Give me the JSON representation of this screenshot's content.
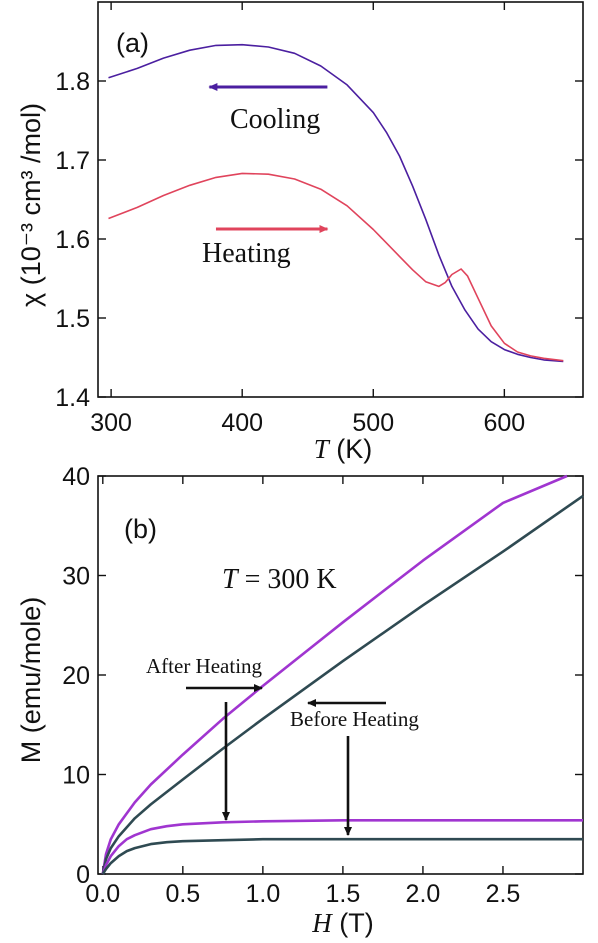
{
  "colors": {
    "cooling": "#4b1fa0",
    "heating": "#e0445c",
    "after_heating": "#a035d0",
    "before_heating": "#2f4a52",
    "axis": "#111111"
  },
  "chart_data": [
    {
      "type": "line",
      "panel_label": "(a)",
      "xlabel_italic": "T",
      "xlabel_rest": " (K)",
      "ylabel": "χ (10⁻³ cm³ /mol)",
      "xlim": [
        290,
        660
      ],
      "ylim": [
        1.4,
        1.9
      ],
      "xticks": [
        300,
        400,
        500,
        600
      ],
      "yticks": [
        1.4,
        1.5,
        1.6,
        1.7,
        1.8
      ],
      "ytick_labels": [
        "1.4",
        "1.5",
        "1.6",
        "1.7",
        "1.8"
      ],
      "annotations": {
        "cooling": "Cooling",
        "heating": "Heating"
      },
      "series": [
        {
          "name": "Cooling",
          "x": [
            298,
            320,
            340,
            360,
            380,
            400,
            420,
            440,
            460,
            480,
            500,
            510,
            520,
            530,
            540,
            550,
            560,
            570,
            580,
            590,
            600,
            610,
            620,
            630,
            645
          ],
          "y": [
            1.804,
            1.816,
            1.829,
            1.839,
            1.845,
            1.846,
            1.843,
            1.835,
            1.819,
            1.795,
            1.76,
            1.735,
            1.705,
            1.667,
            1.625,
            1.58,
            1.54,
            1.51,
            1.486,
            1.47,
            1.46,
            1.454,
            1.45,
            1.447,
            1.445
          ],
          "arrow_x": [
            465,
            375
          ]
        },
        {
          "name": "Heating",
          "x": [
            298,
            320,
            340,
            360,
            380,
            400,
            420,
            440,
            460,
            480,
            500,
            520,
            530,
            540,
            550,
            555,
            560,
            567,
            572,
            580,
            590,
            600,
            610,
            620,
            630,
            645
          ],
          "y": [
            1.626,
            1.64,
            1.655,
            1.668,
            1.678,
            1.683,
            1.682,
            1.676,
            1.663,
            1.642,
            1.612,
            1.578,
            1.561,
            1.546,
            1.54,
            1.545,
            1.555,
            1.562,
            1.553,
            1.525,
            1.49,
            1.468,
            1.457,
            1.452,
            1.449,
            1.446
          ],
          "arrow_x": [
            380,
            465
          ]
        }
      ]
    },
    {
      "type": "line",
      "panel_label": "(b)",
      "xlabel_italic": "H",
      "xlabel_rest": " (T)",
      "ylabel": "M (emu/mole)",
      "title_italic": "T",
      "title_rest": " = 300 K",
      "xlim": [
        -0.03,
        3.0
      ],
      "ylim": [
        0,
        40
      ],
      "xticks": [
        0.0,
        0.5,
        1.0,
        1.5,
        2.0,
        2.5
      ],
      "xtick_labels": [
        "0.0",
        "0.5",
        "1.0",
        "1.5",
        "2.0",
        "2.5"
      ],
      "yticks": [
        0,
        10,
        20,
        30,
        40
      ],
      "ytick_labels": [
        "0",
        "10",
        "20",
        "30",
        "40"
      ],
      "annotations": {
        "after": "After Heating",
        "before": "Before Heating"
      },
      "series": [
        {
          "name": "After Heating",
          "x": [
            0,
            0.02,
            0.05,
            0.1,
            0.2,
            0.3,
            0.5,
            0.75,
            1.0,
            1.5,
            2.0,
            2.5,
            2.9
          ],
          "y": [
            0,
            2.0,
            3.5,
            5.0,
            7.2,
            9.0,
            12.0,
            15.6,
            18.9,
            25.3,
            31.5,
            37.3,
            40.0
          ]
        },
        {
          "name": "Before Heating",
          "x": [
            0,
            0.02,
            0.05,
            0.1,
            0.2,
            0.3,
            0.5,
            0.75,
            1.0,
            1.5,
            2.0,
            2.5,
            3.0
          ],
          "y": [
            0,
            1.5,
            2.6,
            3.8,
            5.6,
            7.0,
            9.5,
            12.6,
            15.6,
            21.4,
            27.0,
            32.4,
            38.0
          ]
        },
        {
          "name": "After Heating component",
          "x": [
            0,
            0.02,
            0.05,
            0.1,
            0.15,
            0.2,
            0.3,
            0.4,
            0.5,
            0.75,
            1.0,
            1.5,
            2.0,
            2.5,
            3.0
          ],
          "y": [
            0,
            0.9,
            1.8,
            2.8,
            3.5,
            3.9,
            4.5,
            4.8,
            5.0,
            5.2,
            5.3,
            5.4,
            5.4,
            5.4,
            5.4
          ]
        },
        {
          "name": "Before Heating component",
          "x": [
            0,
            0.02,
            0.05,
            0.1,
            0.15,
            0.2,
            0.3,
            0.4,
            0.5,
            0.75,
            1.0,
            1.5,
            2.0,
            2.5,
            3.0
          ],
          "y": [
            0,
            0.5,
            1.1,
            1.8,
            2.3,
            2.6,
            3.0,
            3.2,
            3.3,
            3.4,
            3.5,
            3.5,
            3.5,
            3.5,
            3.5
          ]
        }
      ]
    }
  ]
}
